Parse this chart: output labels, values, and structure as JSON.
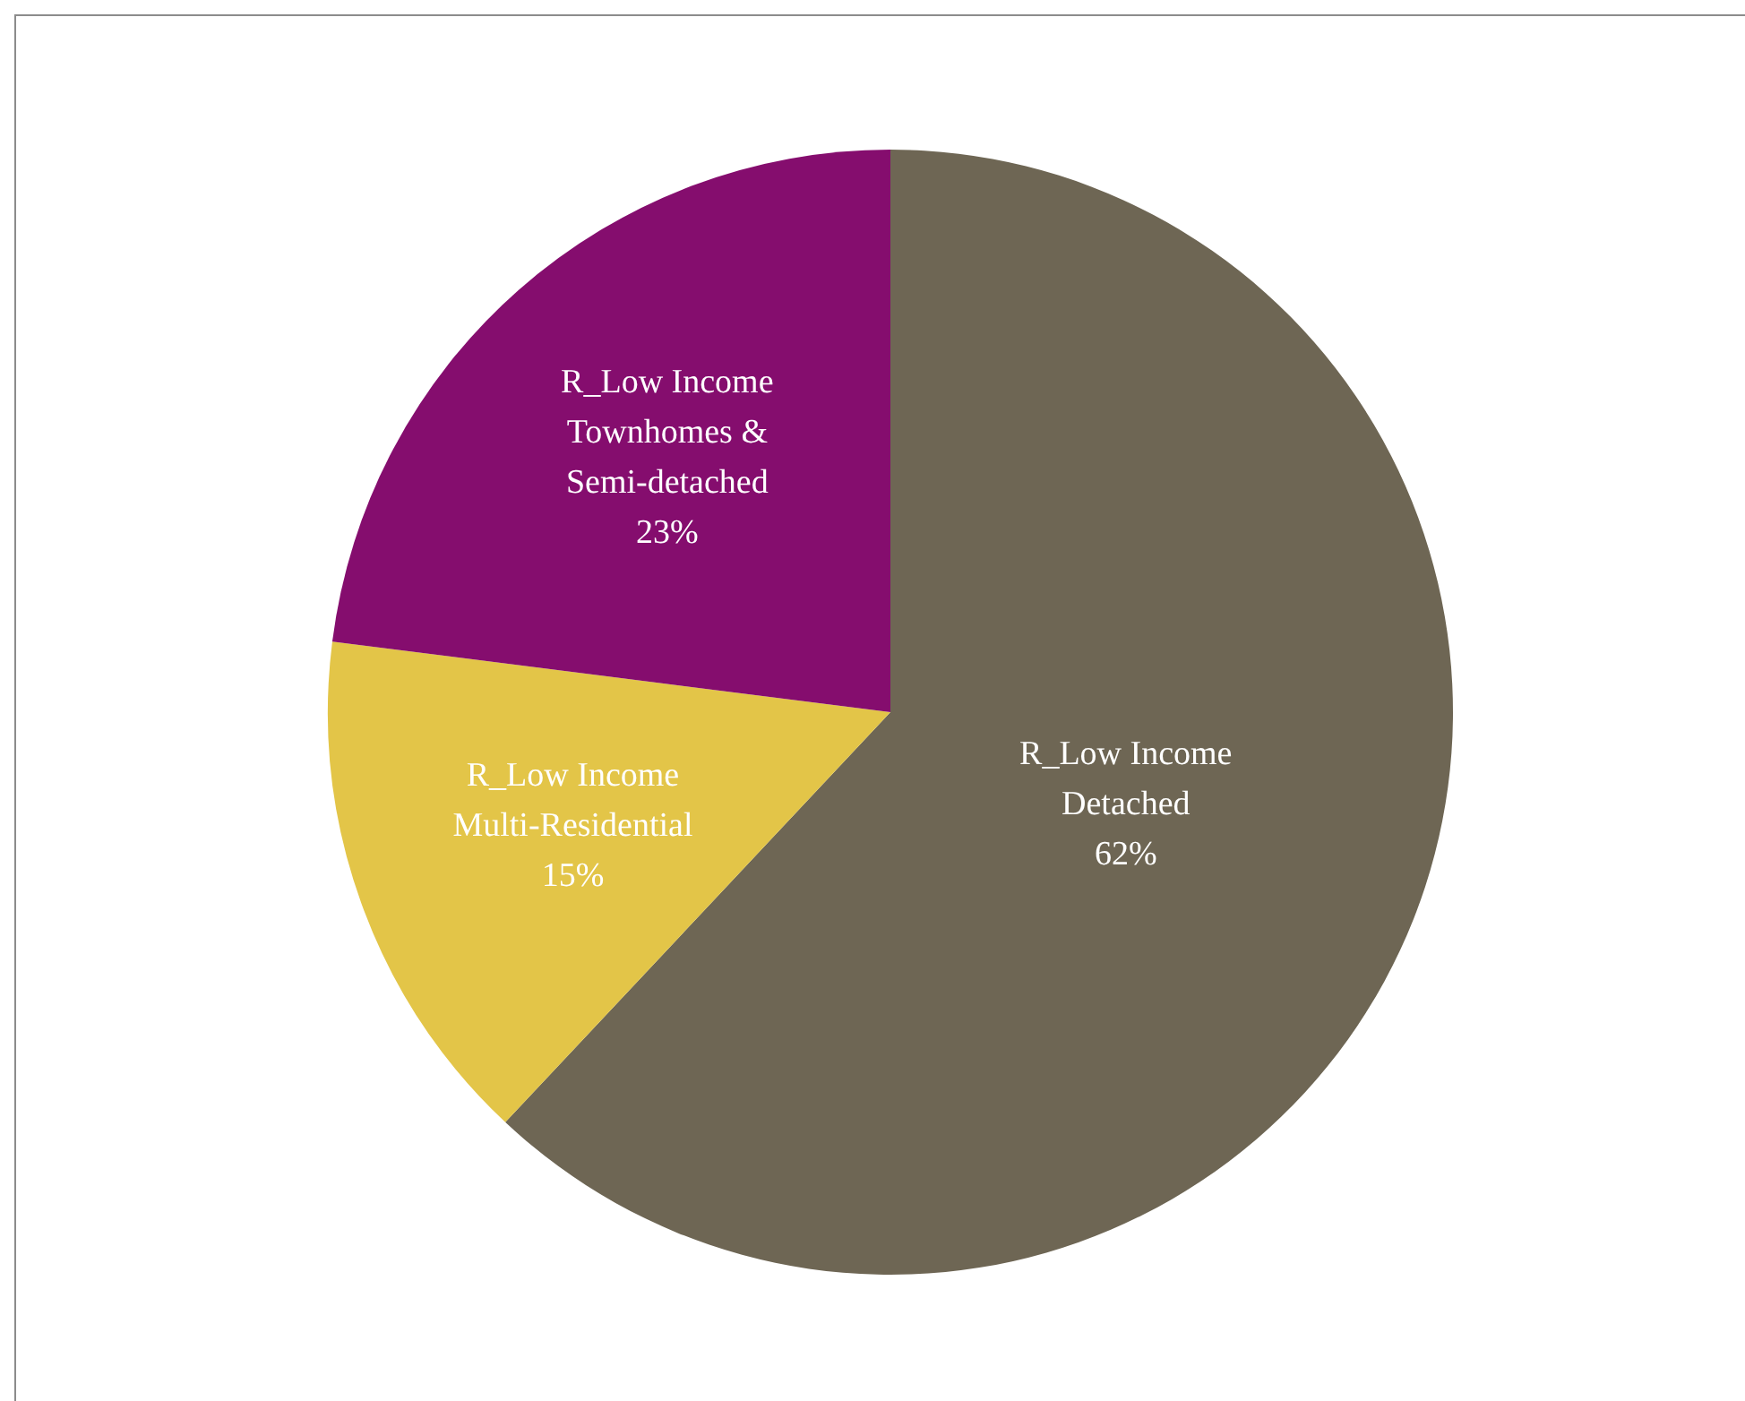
{
  "chart_data": {
    "type": "pie",
    "categories": [
      "R_Low Income Detached",
      "R_Low Income Multi-Residential",
      "R_Low Income Townhomes & Semi-detached"
    ],
    "values": [
      62,
      15,
      23
    ],
    "colors": [
      "#6e6654",
      "#e3c548",
      "#850d6e"
    ],
    "value_labels": [
      "62%",
      "15%",
      "23%"
    ],
    "legend": false
  }
}
